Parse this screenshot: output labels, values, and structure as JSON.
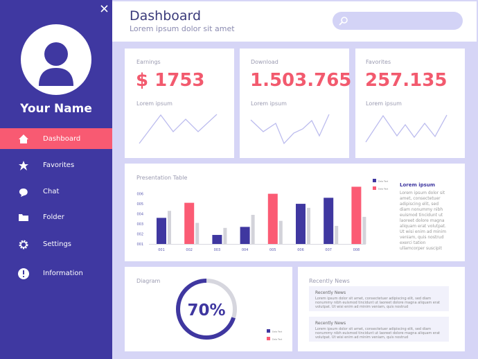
{
  "sidebar": {
    "name": "Your Name",
    "menu": [
      "Dashboard",
      "Favorites",
      "Chat",
      "Folder",
      "Settings",
      "Information"
    ]
  },
  "header": {
    "title": "Dashboard",
    "subtitle": "Lorem ipsum dolor sit amet"
  },
  "stats": [
    {
      "label": "Earnings",
      "value": "$ 1753",
      "caption": "Lorem ipsum"
    },
    {
      "label": "Download",
      "value": "1.503.765",
      "caption": "Lorem ipsum"
    },
    {
      "label": "Favorites",
      "value": "257.135",
      "caption": "Lorem ipsum"
    }
  ],
  "presentation_table": {
    "title": "Presentation Table",
    "categories": [
      "001",
      "002",
      "003",
      "004",
      "005",
      "006",
      "007",
      "008"
    ],
    "ylim": [
      1,
      6.8
    ],
    "yticks": [
      {
        "value": 1,
        "label": "001"
      },
      {
        "value": 2,
        "label": "002"
      },
      {
        "value": 3,
        "label": "003"
      },
      {
        "value": 4,
        "label": "004"
      },
      {
        "value": 5,
        "label": "005"
      },
      {
        "value": 6,
        "label": "006"
      }
    ],
    "series": [
      {
        "name": "Data Text",
        "color": "#3f37a0",
        "values": [
          3.6,
          null,
          1.9,
          2.7,
          null,
          5.0,
          5.6,
          null
        ]
      },
      {
        "name": "Data Text",
        "color": "#fb5b74",
        "values": [
          null,
          5.1,
          null,
          null,
          6.0,
          null,
          null,
          6.7
        ]
      },
      {
        "color": "#d3d3da",
        "values": [
          4.3,
          3.1,
          2.6,
          3.9,
          3.3,
          4.6,
          2.8,
          3.7
        ]
      }
    ],
    "note": {
      "title": "Lorem ipsum",
      "text": "Lorem ipsum dolor sit amet, consectetuer adipiscing elit, sed diam nonummy nibh euismod tincidunt ut laoreet dolore magna aliquam erat volutpat. Ut wisi enim ad minim veniam, quis nostrud exerci tation ullamcorper suscipit"
    }
  },
  "diagram": {
    "title": "Diagram",
    "value": 70,
    "value_label": "70%",
    "color": "#3f37a0",
    "track_color": "#d6d6de",
    "legend": [
      {
        "name": "Data Text",
        "color": "#3f37a0"
      },
      {
        "name": "Data Text",
        "color": "#fb5b74"
      }
    ]
  },
  "recent_news": {
    "title": "Recently News",
    "items": [
      {
        "title": "Recently News",
        "text": "Lorem ipsum dolor sit amet, consectetuer adipiscing elit, sed diam nonummy nibh euismod tincidunt ut laoreet dolore magna aliquam erat volutpat. Ut wisi enim ad minim veniam, quis nostrud"
      },
      {
        "title": "Recently News",
        "text": "Lorem ipsum dolor sit amet, consectetuer adipiscing elit, sed diam nonummy nibh euismod tincidunt ut laoreet dolore magna aliquam erat volutpat. Ut wisi enim ad minim veniam, quis nostrud"
      }
    ]
  }
}
